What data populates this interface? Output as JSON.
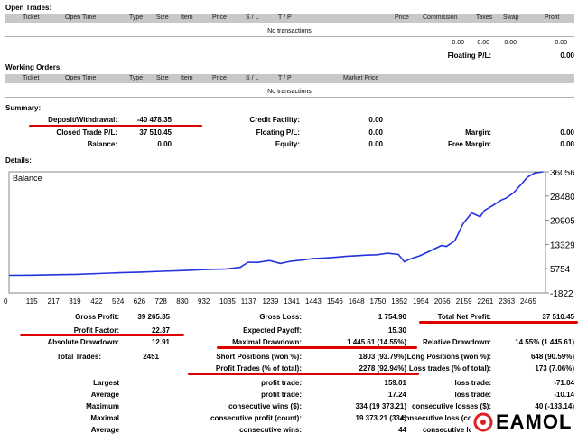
{
  "open_trades": {
    "title": "Open Trades:",
    "columns": [
      "Ticket",
      "Open Time",
      "Type",
      "Size",
      "Item",
      "Price",
      "S / L",
      "T / P",
      "Price",
      "Commission",
      "Taxes",
      "Swap",
      "Profit"
    ],
    "empty": "No transactions",
    "totals": [
      "0.00",
      "0.00",
      "0.00",
      "0.00"
    ],
    "floating_label": "Floating P/L:",
    "floating_value": "0.00"
  },
  "working_orders": {
    "title": "Working Orders:",
    "columns": [
      "Ticket",
      "Open Time",
      "Type",
      "Size",
      "Item",
      "Price",
      "S / L",
      "T / P",
      "Market Price"
    ],
    "empty": "No transactions"
  },
  "summary": {
    "title": "Summary:",
    "deposit_label": "Deposit/Withdrawal:",
    "deposit_value": "-40 478.35",
    "credit_label": "Credit Facility:",
    "credit_value": "0.00",
    "closed_label": "Closed Trade P/L:",
    "closed_value": "37 510.45",
    "floating_label": "Floating P/L:",
    "floating_value": "0.00",
    "margin_label": "Margin:",
    "margin_value": "0.00",
    "balance_label": "Balance:",
    "balance_value": "0.00",
    "equity_label": "Equity:",
    "equity_value": "0.00",
    "free_margin_label": "Free Margin:",
    "free_margin_value": "0.00"
  },
  "details": {
    "title": "Details:"
  },
  "chart_data": {
    "type": "line",
    "legend": "Balance",
    "x_ticks": [
      "0",
      "115",
      "217",
      "319",
      "422",
      "524",
      "626",
      "728",
      "830",
      "932",
      "1035",
      "1137",
      "1239",
      "1341",
      "1443",
      "1546",
      "1648",
      "1750",
      "1852",
      "1954",
      "2056",
      "2159",
      "2261",
      "2363",
      "2465"
    ],
    "y_ticks": [
      "36056",
      "28480",
      "20905",
      "13329",
      "5754",
      "-1822"
    ],
    "ylim": [
      -1822,
      36056
    ],
    "xlim": [
      0,
      2551
    ],
    "series": [
      {
        "x": [
          0,
          115,
          217,
          319,
          422,
          524,
          626,
          728,
          830,
          932,
          1035,
          1100,
          1137,
          1180,
          1239,
          1290,
          1341,
          1400,
          1443,
          1500,
          1546,
          1600,
          1648,
          1700,
          1750,
          1800,
          1852,
          1880,
          1900,
          1954,
          2000,
          2056,
          2080,
          2120,
          2159,
          2200,
          2240,
          2261,
          2300,
          2340,
          2363,
          2400,
          2440,
          2465,
          2500,
          2540
        ],
        "y": [
          3700,
          3760,
          3900,
          4000,
          4250,
          4500,
          4700,
          4950,
          5200,
          5500,
          5700,
          6200,
          7800,
          7700,
          8300,
          7400,
          8100,
          8500,
          8900,
          9100,
          9300,
          9600,
          9800,
          10000,
          10100,
          10600,
          10200,
          7900,
          8600,
          9800,
          11200,
          13000,
          12700,
          14500,
          19800,
          23200,
          22000,
          24000,
          25500,
          27200,
          27800,
          29500,
          32500,
          34400,
          35700,
          36056
        ]
      }
    ]
  },
  "stats": {
    "gross_profit_label": "Gross Profit:",
    "gross_profit": "39 265.35",
    "gross_loss_label": "Gross Loss:",
    "gross_loss": "1 754.90",
    "total_net_label": "Total Net Profit:",
    "total_net": "37 510.45",
    "profit_factor_label": "Profit Factor:",
    "profit_factor": "22.37",
    "expected_payoff_label": "Expected Payoff:",
    "expected_payoff": "15.30",
    "abs_dd_label": "Absolute Drawdown:",
    "abs_dd": "12.91",
    "max_dd_label": "Maximal Drawdown:",
    "max_dd": "1 445.61 (14.55%)",
    "rel_dd_label": "Relative Drawdown:",
    "rel_dd": "14.55% (1 445.61)",
    "total_trades_label": "Total Trades:",
    "total_trades": "2451",
    "short_label": "Short Positions (won %):",
    "short": "1803 (93.79%)",
    "long_label": "Long Positions (won %):",
    "long": "648 (90.59%)",
    "profit_trades_label": "Profit Trades (% of total):",
    "profit_trades": "2278 (92.94%)",
    "loss_trades_label": "Loss trades (% of total):",
    "loss_trades": "173 (7.06%)",
    "largest": "Largest",
    "average": "Average",
    "maximum": "Maximum",
    "maximal": "Maximal",
    "average2": "Average",
    "lp_label": "profit trade:",
    "lp": "159.01",
    "ll_label": "loss trade:",
    "ll": "-71.04",
    "ap_label": "profit trade:",
    "ap": "17.24",
    "al_label": "loss trade:",
    "al": "-10.14",
    "mcw_label": "consecutive wins ($):",
    "mcw": "334 (19 373.21)",
    "mcl_label": "consecutive losses ($):",
    "mcl": "40 (-133.14)",
    "mcp_label": "consecutive profit (count):",
    "mcp": "19 373.21 (334)",
    "mcloss_label": "consecutive loss (cour",
    "mcloss": "",
    "acw_label": "consecutive wins:",
    "acw": "44",
    "acl_label": "consecutive losses:",
    "acl": ""
  },
  "logo": {
    "text": "EAMOL",
    "color": "#e02020"
  }
}
